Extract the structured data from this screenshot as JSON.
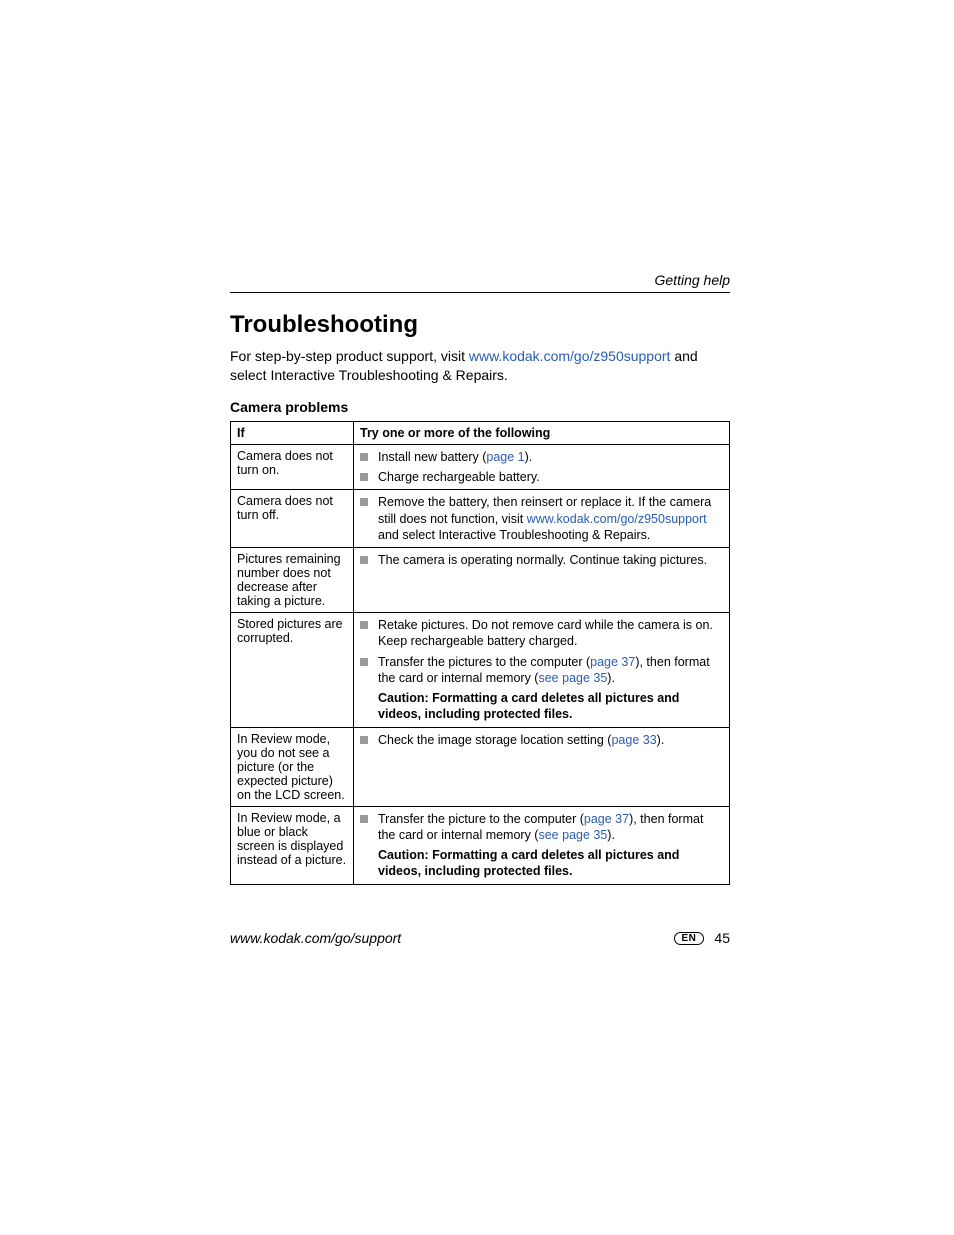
{
  "header": {
    "running_head": "Getting help"
  },
  "title": "Troubleshooting",
  "intro": {
    "pre": "For step-by-step product support, visit ",
    "link": "www.kodak.com/go/z950support",
    "post": " and select Interactive Troubleshooting & Repairs."
  },
  "subhead": "Camera problems",
  "table": {
    "head_if": "If",
    "head_try": "Try one or more of the following",
    "rows": [
      {
        "if": "Camera does not turn on.",
        "items": [
          {
            "parts": [
              {
                "t": "Install new battery ("
              },
              {
                "t": "page 1",
                "link": true
              },
              {
                "t": ")."
              }
            ]
          },
          {
            "parts": [
              {
                "t": "Charge rechargeable battery."
              }
            ]
          }
        ]
      },
      {
        "if": "Camera does not turn off.",
        "items": [
          {
            "parts": [
              {
                "t": "Remove the battery, then reinsert or replace it. If the camera still does not function, visit "
              },
              {
                "t": "www.kodak.com/go/z950support",
                "link": true
              },
              {
                "t": " and select Interactive Troubleshooting & Repairs."
              }
            ]
          }
        ]
      },
      {
        "if": "Pictures remaining number does not decrease after taking a picture.",
        "items": [
          {
            "parts": [
              {
                "t": "The camera is operating normally. Continue taking pictures."
              }
            ]
          }
        ]
      },
      {
        "if": "Stored pictures are corrupted.",
        "items": [
          {
            "parts": [
              {
                "t": "Retake pictures. Do not remove card while the camera is on. Keep rechargeable battery charged."
              }
            ]
          },
          {
            "parts": [
              {
                "t": "Transfer the pictures to the computer ("
              },
              {
                "t": "page 37",
                "link": true
              },
              {
                "t": "), then format the card or internal memory ("
              },
              {
                "t": "see page 35",
                "link": true
              },
              {
                "t": ")."
              }
            ]
          }
        ],
        "caution": "Caution: Formatting a card deletes all pictures and videos, including protected files."
      },
      {
        "if": "In Review mode, you do not see a picture (or the expected picture) on the LCD screen.",
        "items": [
          {
            "parts": [
              {
                "t": "Check the image storage location setting ("
              },
              {
                "t": "page 33",
                "link": true
              },
              {
                "t": ")."
              }
            ]
          }
        ]
      },
      {
        "if": "In Review mode, a blue or black screen is displayed instead of a picture.",
        "items": [
          {
            "parts": [
              {
                "t": "Transfer the picture to the computer ("
              },
              {
                "t": "page 37",
                "link": true
              },
              {
                "t": "), then format the card or internal memory ("
              },
              {
                "t": "see page 35",
                "link": true
              },
              {
                "t": ")."
              }
            ]
          }
        ],
        "caution": "Caution: Formatting a card deletes all pictures and videos, including protected files."
      }
    ]
  },
  "footer": {
    "left": "www.kodak.com/go/support",
    "lang": "EN",
    "page": "45"
  },
  "colors": {
    "link": "#2a5db0",
    "bullet": "#9a9a9a",
    "text": "#000000",
    "background": "#ffffff"
  }
}
